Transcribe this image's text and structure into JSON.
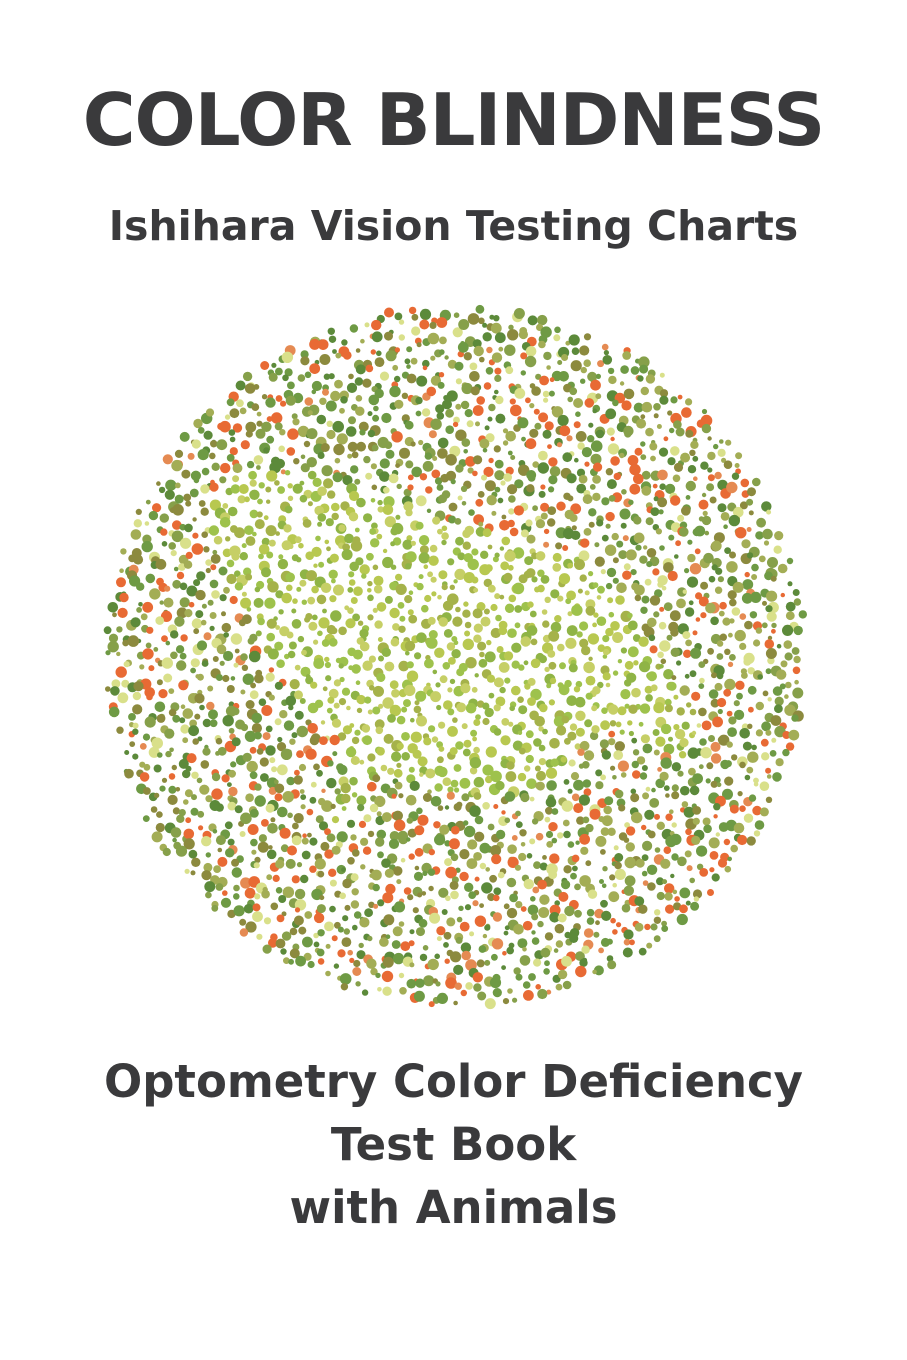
{
  "cover": {
    "title": "COLOR BLINDNESS",
    "subtitle": "Ishihara Vision Testing Charts",
    "lines": [
      "Optometry Color Deficiency",
      "Test Book",
      "with Animals"
    ]
  },
  "plate": {
    "colors": {
      "background_dots": [
        "#6e9a44",
        "#86a04a",
        "#8c8a3e",
        "#5c8a3a",
        "#a3ad55",
        "#d9e08a",
        "#e86a34",
        "#e58a52"
      ],
      "figure_dots": [
        "#9ec24c",
        "#b8c850",
        "#a5b24a",
        "#c6cf66",
        "#8fb446"
      ]
    }
  }
}
